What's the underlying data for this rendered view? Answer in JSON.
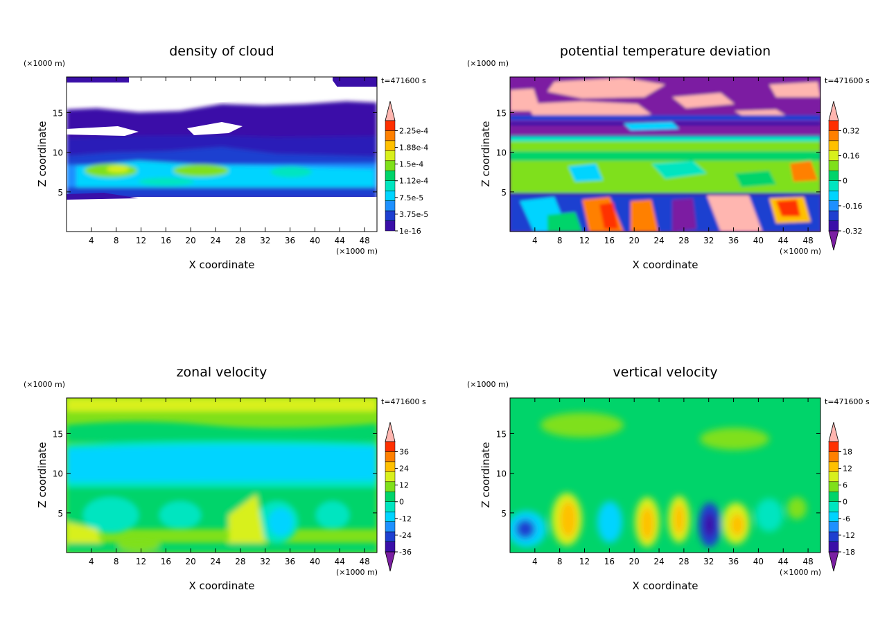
{
  "colors": {
    "palette": [
      "#7b1fa2",
      "#3a0fa8",
      "#1e3fd0",
      "#1e90ff",
      "#00d4ff",
      "#00e5c0",
      "#00d46a",
      "#7fe01a",
      "#d8f01c",
      "#ffc000",
      "#ff8000",
      "#ff3000",
      "#ffb6b0"
    ],
    "frame": "#000000"
  },
  "chart_data": [
    {
      "type": "heatmap",
      "title": "density of cloud",
      "xlabel": "X coordinate",
      "ylabel": "Z coordinate",
      "x_unit": "(×1000 m)",
      "y_unit": "(×1000 m)",
      "time_label": "t=471600 s",
      "xlim": [
        0,
        50
      ],
      "ylim": [
        0,
        19.5
      ],
      "x_ticks": [
        4,
        8,
        12,
        16,
        20,
        24,
        28,
        32,
        36,
        40,
        44,
        48
      ],
      "y_ticks": [
        5,
        10,
        15
      ],
      "colorbar": {
        "labels": [
          "2.25e-4",
          "1.88e-4",
          "1.5e-4",
          "1.12e-4",
          "7.5e-5",
          "3.75e-5",
          "1e-16"
        ],
        "arrow_top": true,
        "arrow_bottom": false
      },
      "description_regions": [
        {
          "z_range": [
            4.8,
            7.5
          ],
          "level": "3.75e-5 to 1.12e-4"
        },
        {
          "z_range": [
            7.5,
            9
          ],
          "level": "1.12e-4 to 1.5e-4"
        },
        {
          "z_range": [
            9,
            16
          ],
          "level": "1e-16 to 3.75e-5"
        }
      ]
    },
    {
      "type": "heatmap",
      "title": "potential temperature deviation",
      "xlabel": "X coordinate",
      "ylabel": "Z coordinate",
      "x_unit": "(×1000 m)",
      "y_unit": "(×1000 m)",
      "time_label": "t=471600 s",
      "xlim": [
        0,
        50
      ],
      "ylim": [
        0,
        19.5
      ],
      "x_ticks": [
        4,
        8,
        12,
        16,
        20,
        24,
        28,
        32,
        36,
        40,
        44,
        48
      ],
      "y_ticks": [
        5,
        10,
        15
      ],
      "colorbar": {
        "labels": [
          "0.32",
          "0.16",
          "0",
          "-0.16",
          "-0.32"
        ],
        "arrow_top": true,
        "arrow_bottom": true
      }
    },
    {
      "type": "heatmap",
      "title": "zonal velocity",
      "xlabel": "X coordinate",
      "ylabel": "Z coordinate",
      "x_unit": "(×1000 m)",
      "y_unit": "(×1000 m)",
      "time_label": "t=471600 s",
      "xlim": [
        0,
        50
      ],
      "ylim": [
        0,
        19.5
      ],
      "x_ticks": [
        4,
        8,
        12,
        16,
        20,
        24,
        28,
        32,
        36,
        40,
        44,
        48
      ],
      "y_ticks": [
        5,
        10,
        15
      ],
      "colorbar": {
        "labels": [
          "36",
          "24",
          "12",
          "0",
          "-12",
          "-24",
          "-36"
        ],
        "arrow_top": true,
        "arrow_bottom": true
      }
    },
    {
      "type": "heatmap",
      "title": "vertical velocity",
      "xlabel": "X coordinate",
      "ylabel": "Z coordinate",
      "x_unit": "(×1000 m)",
      "y_unit": "(×1000 m)",
      "time_label": "t=471600 s",
      "xlim": [
        0,
        50
      ],
      "ylim": [
        0,
        19.5
      ],
      "x_ticks": [
        4,
        8,
        12,
        16,
        20,
        24,
        28,
        32,
        36,
        40,
        44,
        48
      ],
      "y_ticks": [
        5,
        10,
        15
      ],
      "colorbar": {
        "labels": [
          "18",
          "12",
          "6",
          "0",
          "-6",
          "-12",
          "-18"
        ],
        "arrow_top": true,
        "arrow_bottom": true
      }
    }
  ]
}
